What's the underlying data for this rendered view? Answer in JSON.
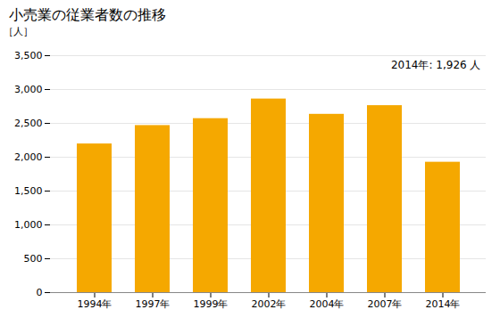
{
  "chart_data": {
    "type": "bar",
    "title": "小売業の従業者数の推移",
    "ylabel": "［人］",
    "annotation": "2014年: 1,926 人",
    "categories": [
      "1994年",
      "1997年",
      "1999年",
      "2002年",
      "2004年",
      "2007年",
      "2014年"
    ],
    "values": [
      2196,
      2468,
      2570,
      2860,
      2634,
      2762,
      1926
    ],
    "color": "#F5A800",
    "ylim": [
      0,
      3500
    ],
    "yticks": [
      0,
      500,
      {
        "value": 1000,
        "label": "1,000"
      },
      {
        "value": 1500,
        "label": "1,500"
      },
      {
        "value": 2000,
        "label": "2,000"
      },
      {
        "value": 2500,
        "label": "2,500"
      },
      {
        "value": 3000,
        "label": "3,000"
      },
      {
        "value": 3500,
        "label": "3,500"
      }
    ],
    "grid": true
  }
}
